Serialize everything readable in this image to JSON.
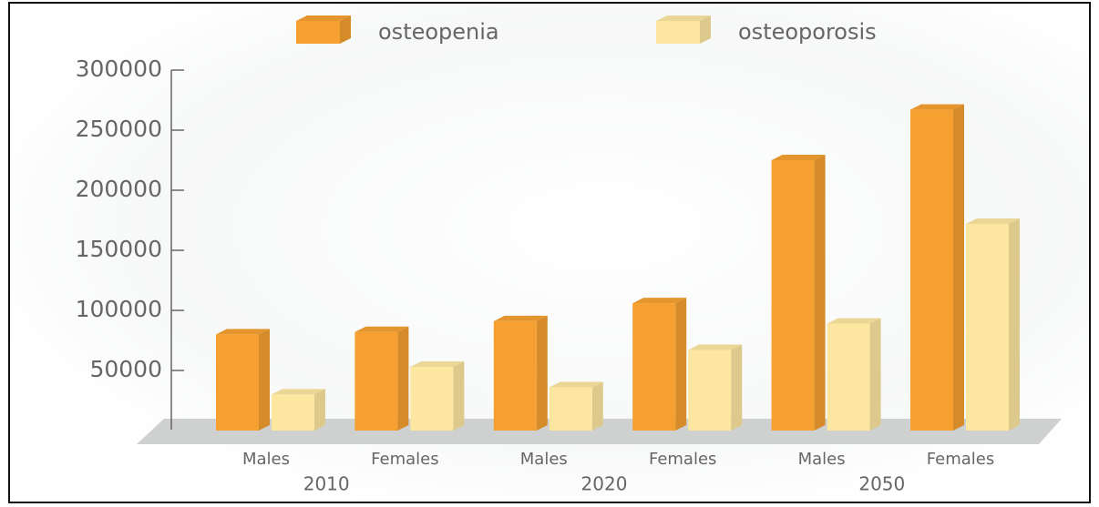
{
  "chart_data": {
    "type": "bar",
    "categories": [
      "Males",
      "Females",
      "Males",
      "Females",
      "Males",
      "Females"
    ],
    "groups": [
      "2010",
      "2020",
      "2050"
    ],
    "series": [
      {
        "name": "osteopenia",
        "color": "#f5a030",
        "values": [
          80000,
          82000,
          91000,
          106000,
          225000,
          267000
        ]
      },
      {
        "name": "osteoporosis",
        "color": "#fde7a0",
        "values": [
          30000,
          53000,
          36000,
          67000,
          89000,
          172000
        ]
      }
    ],
    "ylim": [
      0,
      300000
    ],
    "yticks": [
      50000,
      100000,
      150000,
      200000,
      250000,
      300000
    ]
  }
}
